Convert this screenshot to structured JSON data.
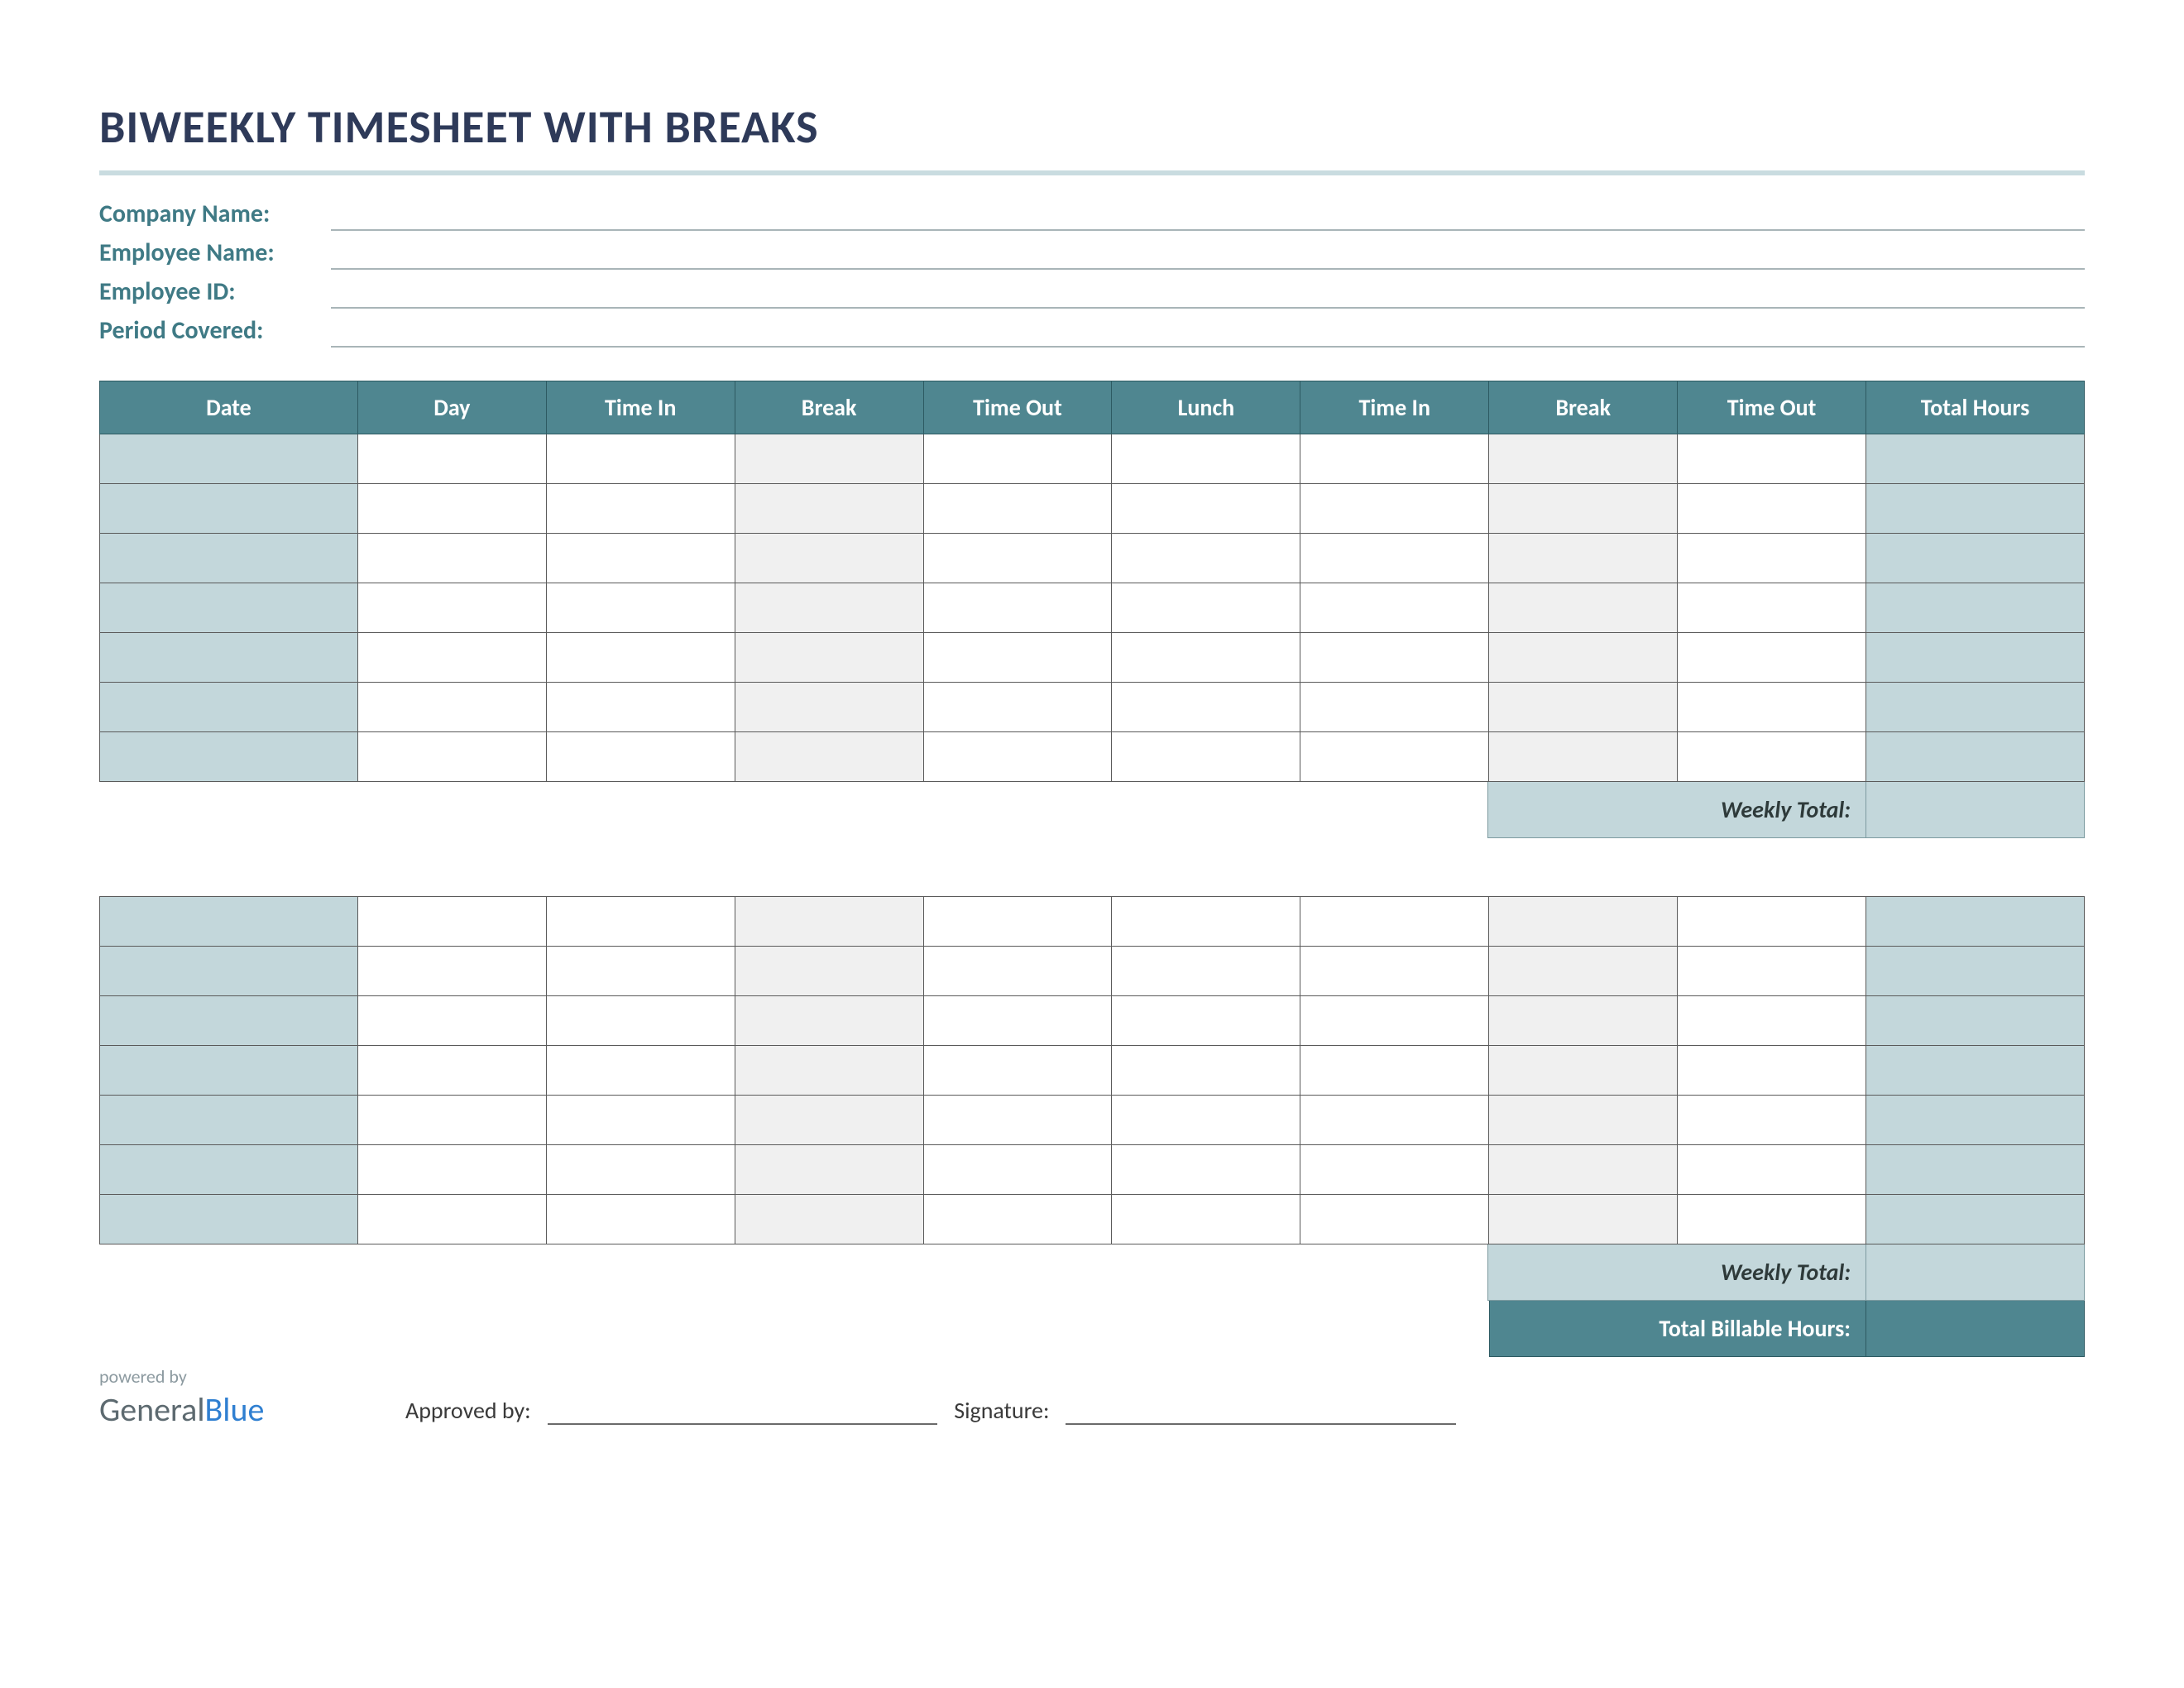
{
  "title": "BIWEEKLY TIMESHEET WITH BREAKS",
  "colors": {
    "title_text": "#2e3a59",
    "title_rule": "#c9dce0",
    "label_text": "#3f7a85",
    "header_bg": "#4f8690",
    "header_text": "#ffffff",
    "cell_border": "#5a5a5a",
    "shade_blue": "#c3d7db",
    "shade_grey": "#f0f0f0",
    "info_line": "#a9b5b8"
  },
  "info_fields": {
    "company": "Company Name:",
    "employee": "Employee Name:",
    "employee_id": "Employee ID:",
    "period": "Period Covered:"
  },
  "columns": [
    {
      "key": "date",
      "label": "Date",
      "shade": "blue",
      "class": "col-date"
    },
    {
      "key": "day",
      "label": "Day",
      "shade": "none",
      "class": "col-day"
    },
    {
      "key": "time_in1",
      "label": "Time In",
      "shade": "none",
      "class": "col-timein"
    },
    {
      "key": "break1",
      "label": "Break",
      "shade": "grey",
      "class": "col-break"
    },
    {
      "key": "time_out1",
      "label": "Time Out",
      "shade": "none",
      "class": "col-timeout"
    },
    {
      "key": "lunch",
      "label": "Lunch",
      "shade": "none",
      "class": "col-lunch"
    },
    {
      "key": "time_in2",
      "label": "Time In",
      "shade": "none",
      "class": "col-timein2"
    },
    {
      "key": "break2",
      "label": "Break",
      "shade": "grey",
      "class": "col-break2"
    },
    {
      "key": "time_out2",
      "label": "Time Out",
      "shade": "none",
      "class": "col-timeout2"
    },
    {
      "key": "total",
      "label": "Total Hours",
      "shade": "blue",
      "class": "col-total"
    }
  ],
  "rows_per_week": 7,
  "weekly_total_label": "Weekly Total:",
  "billable_label": "Total Billable Hours:",
  "footer": {
    "powered_by": "powered by",
    "logo_general": "General",
    "logo_blue": "Blue",
    "approved_by": "Approved by:",
    "signature": "Signature:"
  }
}
